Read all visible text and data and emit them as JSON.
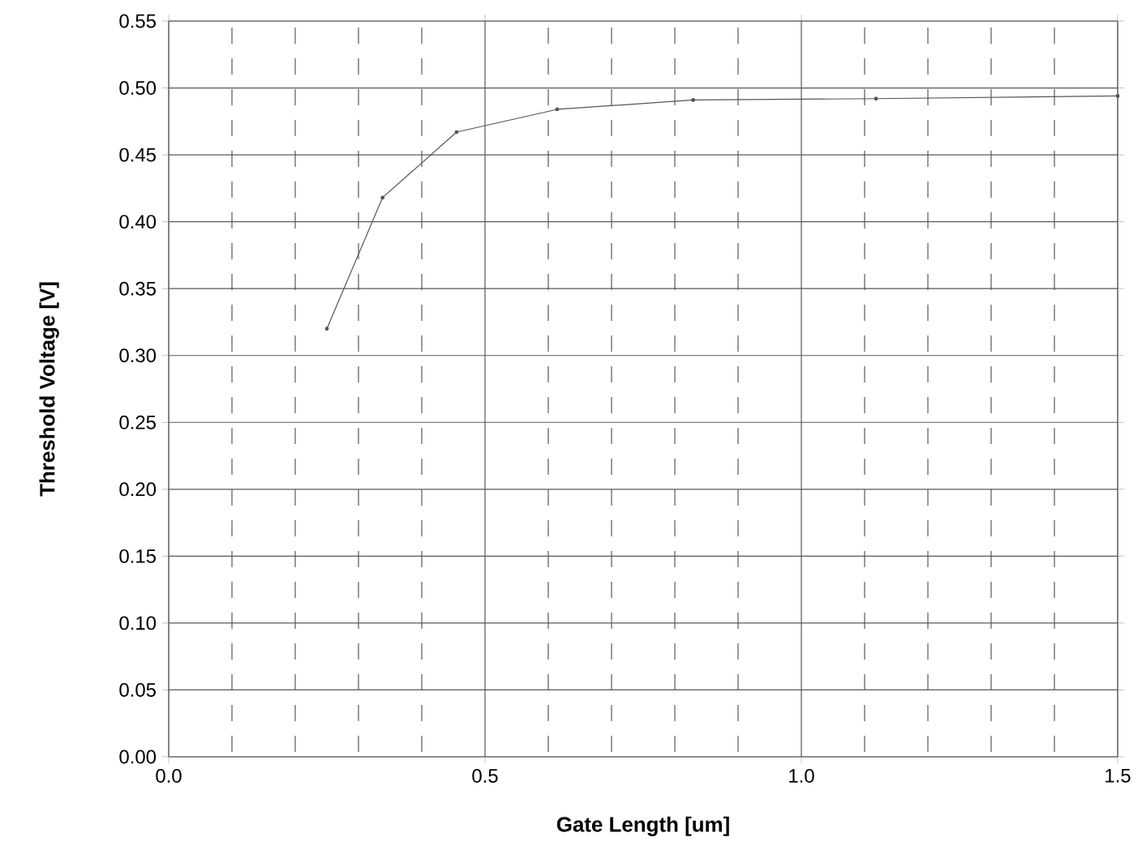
{
  "chart_data": {
    "type": "line",
    "xlabel": "Gate Length [um]",
    "ylabel": "Threshold Voltage [V]",
    "x": [
      0.25,
      0.338,
      0.455,
      0.614,
      0.829,
      1.118,
      1.5
    ],
    "series": [
      {
        "color": "#555555",
        "values": [
          0.32,
          0.418,
          0.467,
          0.484,
          0.491,
          0.492,
          0.494
        ]
      }
    ],
    "xlim": [
      0,
      1.5
    ],
    "xticks": [
      {
        "value": 0,
        "label": "0.0"
      },
      {
        "value": 0.1,
        "label": null
      },
      {
        "value": 0.2,
        "label": null
      },
      {
        "value": 0.3,
        "label": null
      },
      {
        "value": 0.4,
        "label": null
      },
      {
        "value": 0.5,
        "label": "0.5"
      },
      {
        "value": 0.6,
        "label": null
      },
      {
        "value": 0.7,
        "label": null
      },
      {
        "value": 0.8,
        "label": null
      },
      {
        "value": 0.9,
        "label": null
      },
      {
        "value": 1.0,
        "label": "1.0"
      },
      {
        "value": 1.1,
        "label": null
      },
      {
        "value": 1.2,
        "label": null
      },
      {
        "value": 1.3,
        "label": null
      },
      {
        "value": 1.4,
        "label": null
      },
      {
        "value": 1.5,
        "label": "1.5"
      }
    ],
    "ylim": [
      0,
      0.55
    ],
    "yticks": [
      {
        "value": 0,
        "label": "0.00"
      },
      {
        "value": 0.05,
        "label": "0.05"
      },
      {
        "value": 0.1,
        "label": "0.10"
      },
      {
        "value": 0.15,
        "label": "0.15"
      },
      {
        "value": 0.2,
        "label": "0.20"
      },
      {
        "value": 0.25,
        "label": "0.25"
      },
      {
        "value": 0.3,
        "label": "0.30"
      },
      {
        "value": 0.35,
        "label": "0.35"
      },
      {
        "value": 0.4,
        "label": "0.40"
      },
      {
        "value": 0.45,
        "label": "0.45"
      },
      {
        "value": 0.5,
        "label": "0.50"
      },
      {
        "value": 0.55,
        "label": "0.55"
      }
    ],
    "grid": true,
    "marker": "circle",
    "line_style": "solid"
  }
}
